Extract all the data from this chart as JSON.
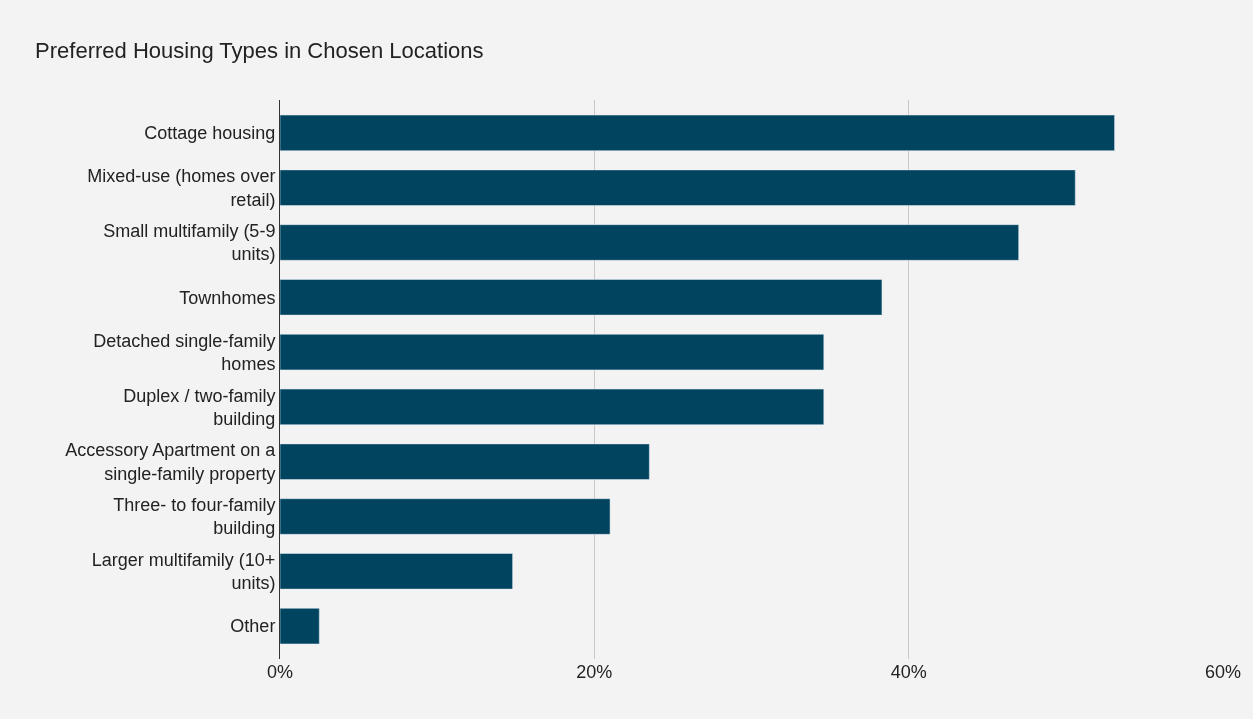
{
  "chart_data": {
    "type": "bar",
    "orientation": "horizontal",
    "title": "Preferred Housing Types in Chosen Locations",
    "categories": [
      "Cottage housing",
      "Mixed-use (homes over retail)",
      "Small multifamily (5-9 units)",
      "Townhomes",
      "Detached single-family homes",
      "Duplex / two-family building",
      "Accessory Apartment on a single-family property",
      "Three- to four-family building",
      "Larger multifamily (10+ units)",
      "Other"
    ],
    "values": [
      53.1,
      50.6,
      47.0,
      38.3,
      34.6,
      34.6,
      23.5,
      21.0,
      14.8,
      2.5
    ],
    "color": "#00445f",
    "xlim": [
      0,
      60
    ],
    "xticks": [
      {
        "value": 0,
        "label": "0%"
      },
      {
        "value": 20,
        "label": "20%"
      },
      {
        "value": 40,
        "label": "40%"
      },
      {
        "value": 60,
        "label": "60%"
      }
    ],
    "grid": "x",
    "legend": false
  }
}
